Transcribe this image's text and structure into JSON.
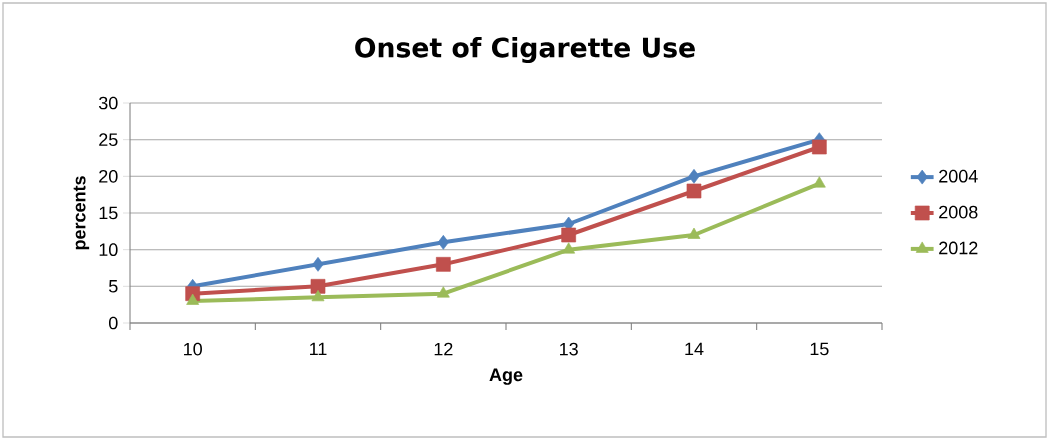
{
  "chart_data": {
    "type": "line",
    "title": "Onset of Cigarette Use",
    "xlabel": "Age",
    "ylabel": "percents",
    "categories": [
      "10",
      "11",
      "12",
      "13",
      "14",
      "15"
    ],
    "ylim": [
      0,
      30
    ],
    "yticks": [
      0,
      5,
      10,
      15,
      20,
      25,
      30
    ],
    "grid": "y",
    "legend": "right",
    "line_style": "solid",
    "series": [
      {
        "name": "2004",
        "color": "#4f81bd",
        "marker": "diamond",
        "values": [
          5,
          8,
          11,
          13.5,
          20,
          25
        ]
      },
      {
        "name": "2008",
        "color": "#c0504d",
        "marker": "square",
        "values": [
          4,
          5,
          8,
          12,
          18,
          24
        ]
      },
      {
        "name": "2012",
        "color": "#9bbb59",
        "marker": "triangle",
        "values": [
          3,
          3.5,
          4,
          10,
          12,
          19
        ]
      }
    ]
  }
}
